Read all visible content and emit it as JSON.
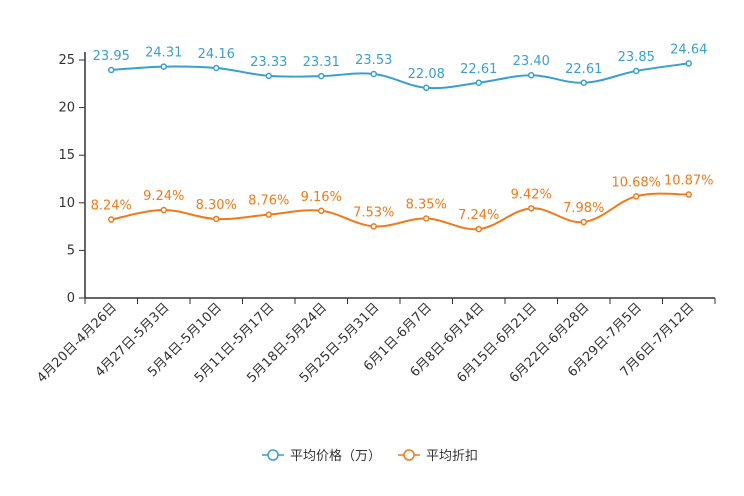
{
  "chart_data": {
    "type": "line",
    "title": "",
    "xlabel": "",
    "ylabel": "",
    "ylim": [
      0,
      25
    ],
    "yticks": [
      0,
      5,
      10,
      15,
      20,
      25
    ],
    "grid": false,
    "legend_position": "bottom",
    "categories": [
      "4月20日-4月26日",
      "4月27日-5月3日",
      "5月4日-5月10日",
      "5月11日-5月17日",
      "5月18日-5月24日",
      "5月25日-5月31日",
      "6月1日-6月7日",
      "6月8日-6月14日",
      "6月15日-6月21日",
      "6月22日-6月28日",
      "6月29日-7月5日",
      "7月6日-7月12日"
    ],
    "series": [
      {
        "name": "平均价格（万）",
        "color": "#3a9fd0",
        "values": [
          23.95,
          24.31,
          24.16,
          23.33,
          23.31,
          23.53,
          22.08,
          22.61,
          23.4,
          22.61,
          23.85,
          24.64
        ],
        "labels": [
          "23.95",
          "24.31",
          "24.16",
          "23.33",
          "23.31",
          "23.53",
          "22.08",
          "22.61",
          "23.40",
          "22.61",
          "23.85",
          "24.64"
        ]
      },
      {
        "name": "平均折扣",
        "color": "#f07a1a",
        "values": [
          8.24,
          9.24,
          8.3,
          8.76,
          9.16,
          7.53,
          8.35,
          7.24,
          9.42,
          7.98,
          10.68,
          10.87
        ],
        "labels": [
          "8.24%",
          "9.24%",
          "8.30%",
          "8.76%",
          "9.16%",
          "7.53%",
          "8.35%",
          "7.24%",
          "9.42%",
          "7.98%",
          "10.68%",
          "10.87%"
        ]
      }
    ]
  }
}
